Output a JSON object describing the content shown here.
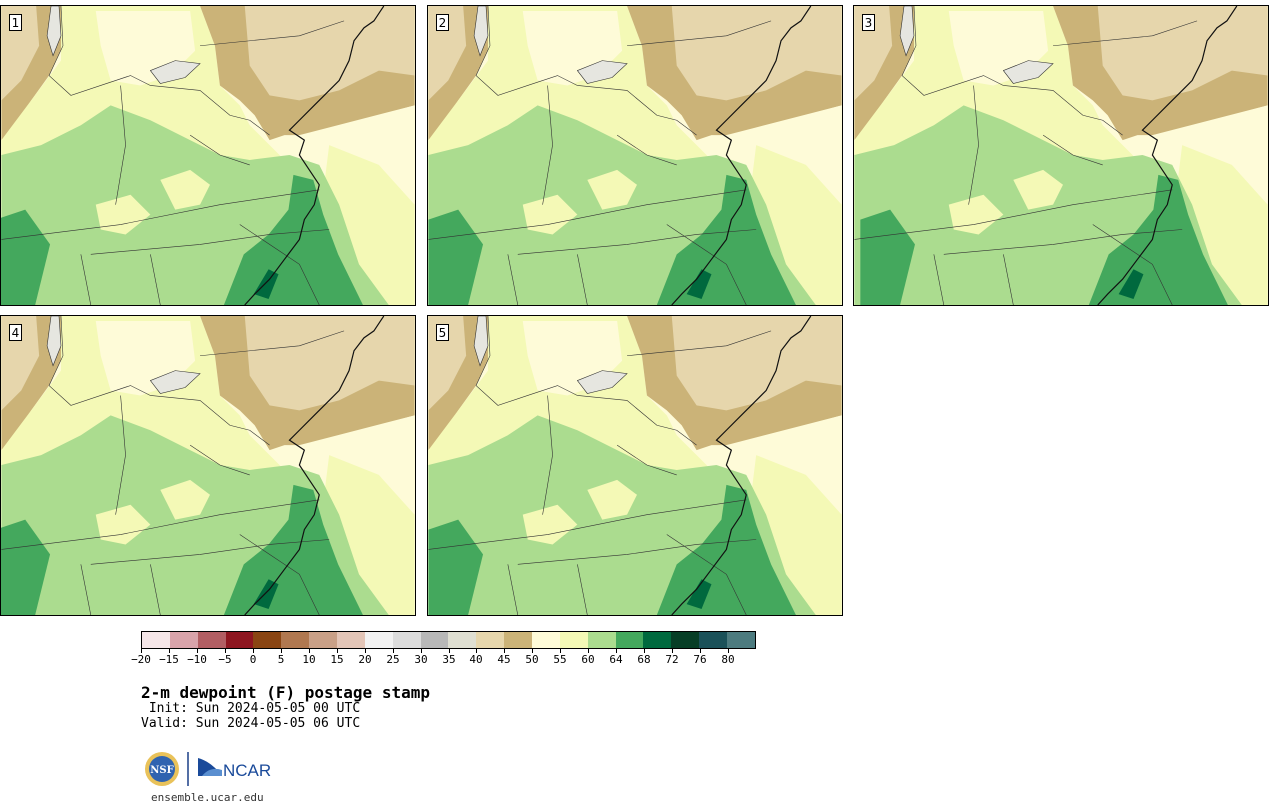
{
  "panels": [
    {
      "label": "1"
    },
    {
      "label": "2"
    },
    {
      "label": "3"
    },
    {
      "label": "4"
    },
    {
      "label": "5"
    }
  ],
  "colorbar": {
    "colors": [
      "#f5e6e8",
      "#d9a3aa",
      "#b25e63",
      "#8e1620",
      "#8a4512",
      "#b07850",
      "#c9a087",
      "#e3c5b7",
      "#f2f2f2",
      "#dcdcdc",
      "#b8b8b8",
      "#dfdfd2",
      "#e6d6ac",
      "#cbb378",
      "#fefbd8",
      "#f4f9b6",
      "#abdc8f",
      "#44a85d",
      "#00693e",
      "#073e26",
      "#1b5159",
      "#4d7b7f"
    ],
    "tick_labels": [
      "−20",
      "−15",
      "−10",
      "−5",
      "0",
      "5",
      "10",
      "15",
      "20",
      "25",
      "30",
      "35",
      "40",
      "45",
      "50",
      "55",
      "60",
      "64",
      "68",
      "72",
      "76",
      "80"
    ]
  },
  "map_colors": {
    "c30": "#e3d6b5",
    "c40": "#e6d6ac",
    "c45": "#cbb378",
    "c50": "#fefbd8",
    "c55": "#f4f9b6",
    "c60": "#abdc8f",
    "c64": "#44a85d",
    "c68": "#00693e",
    "lake": "#e6e6e0"
  },
  "title": "2-m dewpoint (F) postage stamp",
  "init": " Init: Sun 2024-05-05 00 UTC",
  "valid": "Valid: Sun 2024-05-05 06 UTC",
  "logos": {
    "nsf": "NSF",
    "ncar": "NCAR"
  },
  "site": "ensemble.ucar.edu"
}
